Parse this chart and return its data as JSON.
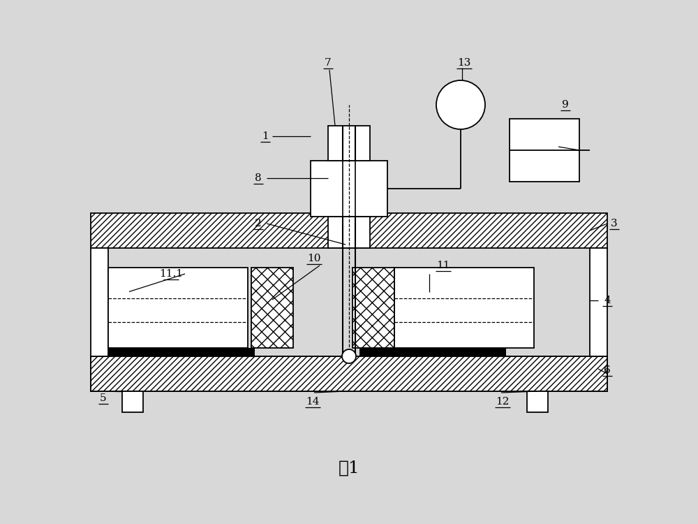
{
  "bg_color": "#d8d8d8",
  "line_color": "#000000",
  "title": "图1",
  "fig_w": 10.0,
  "fig_h": 7.5,
  "dpi": 100
}
